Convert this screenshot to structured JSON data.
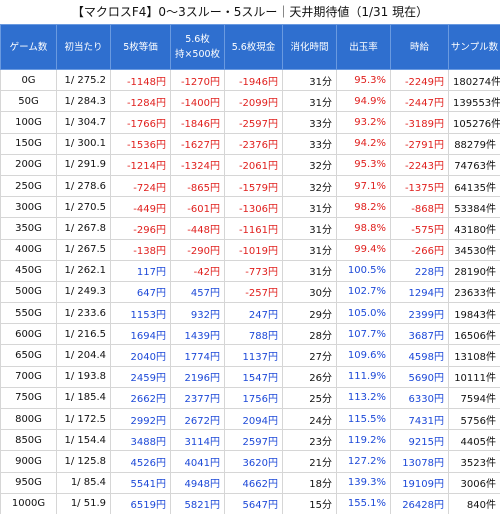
{
  "title": "【マクロスF4】0〜3スルー・5スルー｜天井期待値（1/31 現在）",
  "table": {
    "header": [
      "ゲーム数",
      "初当たり",
      "5枚等価",
      "5.6枚\n持×500枚",
      "5.6枚現金",
      "消化時間",
      "出玉率",
      "時給",
      "サンプル数"
    ],
    "rows": [
      [
        "0G",
        "1/ 275.2",
        "-1148円",
        "-1270円",
        "-1946円",
        "31分",
        "95.3%",
        "-2249円",
        "180274件"
      ],
      [
        "50G",
        "1/ 284.3",
        "-1284円",
        "-1400円",
        "-2099円",
        "31分",
        "94.9%",
        "-2447円",
        "139553件"
      ],
      [
        "100G",
        "1/ 304.7",
        "-1766円",
        "-1846円",
        "-2597円",
        "33分",
        "93.2%",
        "-3189円",
        "105276件"
      ],
      [
        "150G",
        "1/ 300.1",
        "-1536円",
        "-1627円",
        "-2376円",
        "33分",
        "94.2%",
        "-2791円",
        "88279件"
      ],
      [
        "200G",
        "1/ 291.9",
        "-1214円",
        "-1324円",
        "-2061円",
        "32分",
        "95.3%",
        "-2243円",
        "74763件"
      ],
      [
        "250G",
        "1/ 278.6",
        "-724円",
        "-865円",
        "-1579円",
        "32分",
        "97.1%",
        "-1375円",
        "64135件"
      ],
      [
        "300G",
        "1/ 270.5",
        "-449円",
        "-601円",
        "-1306円",
        "31分",
        "98.2%",
        "-868円",
        "53384件"
      ],
      [
        "350G",
        "1/ 267.8",
        "-296円",
        "-448円",
        "-1161円",
        "31分",
        "98.8%",
        "-575円",
        "43180件"
      ],
      [
        "400G",
        "1/ 267.5",
        "-138円",
        "-290円",
        "-1019円",
        "31分",
        "99.4%",
        "-266円",
        "34530件"
      ],
      [
        "450G",
        "1/ 262.1",
        "117円",
        "-42円",
        "-773円",
        "31分",
        "100.5%",
        "228円",
        "28190件"
      ],
      [
        "500G",
        "1/ 249.3",
        "647円",
        "457円",
        "-257円",
        "30分",
        "102.7%",
        "1294円",
        "23633件"
      ],
      [
        "550G",
        "1/ 233.6",
        "1153円",
        "932円",
        "247円",
        "29分",
        "105.0%",
        "2399円",
        "19843件"
      ],
      [
        "600G",
        "1/ 216.5",
        "1694円",
        "1439円",
        "788円",
        "28分",
        "107.7%",
        "3687円",
        "16506件"
      ],
      [
        "650G",
        "1/ 204.4",
        "2040円",
        "1774円",
        "1137円",
        "27分",
        "109.6%",
        "4598円",
        "13108件"
      ],
      [
        "700G",
        "1/ 193.8",
        "2459円",
        "2196円",
        "1547円",
        "26分",
        "111.9%",
        "5690円",
        "10111件"
      ],
      [
        "750G",
        "1/ 185.4",
        "2662円",
        "2377円",
        "1756円",
        "25分",
        "113.2%",
        "6330円",
        "7594件"
      ],
      [
        "800G",
        "1/ 172.5",
        "2992円",
        "2672円",
        "2094円",
        "24分",
        "115.5%",
        "7431円",
        "5756件"
      ],
      [
        "850G",
        "1/ 154.4",
        "3488円",
        "3114円",
        "2597円",
        "23分",
        "119.2%",
        "9215円",
        "4405件"
      ],
      [
        "900G",
        "1/ 125.8",
        "4526円",
        "4041円",
        "3620円",
        "21分",
        "127.2%",
        "13078円",
        "3523件"
      ],
      [
        "950G",
        "1/ 85.4",
        "5541円",
        "4948円",
        "4662円",
        "18分",
        "139.3%",
        "19109円",
        "3006件"
      ],
      [
        "1000G",
        "1/ 51.9",
        "6519円",
        "5821円",
        "5647円",
        "15分",
        "155.1%",
        "26428円",
        "840件"
      ]
    ]
  }
}
